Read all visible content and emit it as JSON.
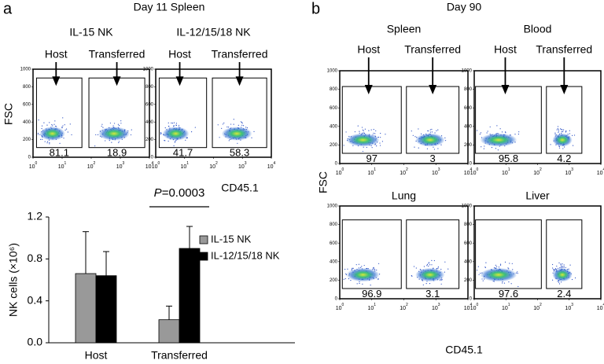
{
  "panels": [
    {
      "label": "a",
      "title": "Day 11 Spleen",
      "xlabel": "CD45.1",
      "ylabel": "FSC"
    },
    {
      "label": "b",
      "title": "Day 90",
      "xlabel": "CD45.1",
      "ylabel": "FSC"
    }
  ],
  "chart_data": [
    {
      "type": "flow",
      "title": "IL-15 NK",
      "ylim": [
        0,
        1000
      ],
      "yticks": [
        0,
        200,
        400,
        600,
        800,
        1000
      ],
      "xlim": [
        0,
        4
      ],
      "xticks": [
        0,
        1,
        2,
        3,
        4
      ],
      "xtick_base": "10",
      "gates": [
        {
          "arrow_label": "Host",
          "value": 81.1
        },
        {
          "arrow_label": "Transferred",
          "value": 18.9
        }
      ]
    },
    {
      "type": "flow",
      "title": "IL-12/15/18 NK",
      "ylim": [
        0,
        1000
      ],
      "yticks": [
        0,
        200,
        400,
        600,
        800,
        1000
      ],
      "xlim": [
        0,
        4
      ],
      "xticks": [
        0,
        1,
        2,
        3,
        4
      ],
      "xtick_base": "10",
      "gates": [
        {
          "arrow_label": "Host",
          "value": 41.7
        },
        {
          "arrow_label": "Transferred",
          "value": 58.3
        }
      ]
    },
    {
      "type": "flow",
      "title": "Spleen",
      "ylim": [
        0,
        1000
      ],
      "yticks": [
        0,
        200,
        400,
        600,
        800,
        1000
      ],
      "xlim": [
        0,
        4
      ],
      "xticks": [
        0,
        1,
        2,
        3,
        4
      ],
      "xtick_base": "10",
      "gates": [
        {
          "arrow_label": "Host",
          "value": 97.0
        },
        {
          "arrow_label": "Transferred",
          "value": 3.0
        }
      ]
    },
    {
      "type": "flow",
      "title": "Blood",
      "ylim": [
        0,
        1000
      ],
      "yticks": [
        0,
        200,
        400,
        600,
        800,
        1000
      ],
      "xlim": [
        0,
        4
      ],
      "xticks": [
        0,
        1,
        2,
        3,
        4
      ],
      "xtick_base": "10",
      "gates": [
        {
          "arrow_label": "Host",
          "value": 95.8
        },
        {
          "arrow_label": "Transferred",
          "value": 4.2
        }
      ]
    },
    {
      "type": "flow",
      "title": "Lung",
      "ylim": [
        0,
        1000
      ],
      "yticks": [
        0,
        200,
        400,
        600,
        800,
        1000
      ],
      "xlim": [
        0,
        4
      ],
      "xticks": [
        0,
        1,
        2,
        3,
        4
      ],
      "xtick_base": "10",
      "gates": [
        {
          "value": 96.9
        },
        {
          "value": 3.1
        }
      ]
    },
    {
      "type": "flow",
      "title": "Liver",
      "ylim": [
        0,
        1000
      ],
      "yticks": [
        0,
        200,
        400,
        600,
        800,
        1000
      ],
      "xlim": [
        0,
        4
      ],
      "xticks": [
        0,
        1,
        2,
        3,
        4
      ],
      "xtick_base": "10",
      "gates": [
        {
          "value": 97.6
        },
        {
          "value": 2.4
        }
      ]
    },
    {
      "type": "bar",
      "ylabel": "NK cells (×10⁶)",
      "categories": [
        "Host",
        "Transferred"
      ],
      "series": [
        {
          "name": "IL-15 NK",
          "color": "#999999",
          "values": [
            0.66,
            0.22
          ],
          "errors": [
            0.4,
            0.13
          ]
        },
        {
          "name": "IL-12/15/18 NK",
          "color": "#000000",
          "values": [
            0.64,
            0.9
          ],
          "errors": [
            0.23,
            0.21
          ]
        }
      ],
      "ylim": [
        0,
        1.2
      ],
      "yticks": [
        {
          "value": 0,
          "label": "0.0"
        },
        0.4,
        0.8,
        1.2
      ],
      "annotation": {
        "italic": "P",
        "text": "=0.0003"
      },
      "legend": "right"
    }
  ]
}
